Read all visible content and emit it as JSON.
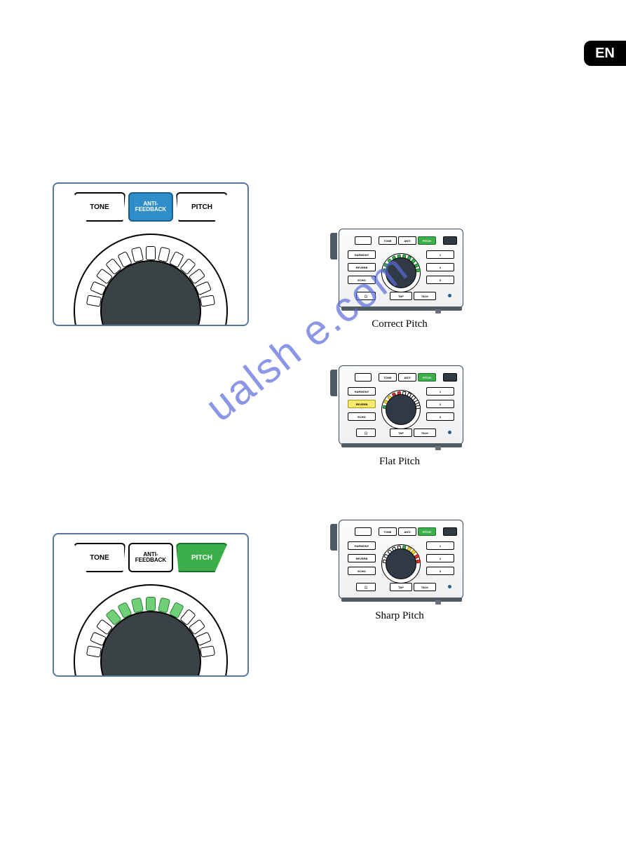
{
  "lang_badge": "EN",
  "panel1": {
    "btn_tone": "TONE",
    "btn_anti_line1": "ANTI-",
    "btn_anti_line2": "FEEDBACK",
    "btn_pitch": "PITCH",
    "anti_lit": true,
    "pitch_lit": false,
    "segs_lit": [],
    "colors": {
      "anti_bg": "#2f8dc9",
      "pitch_bg": "#ffffff",
      "knob": "#3b4246"
    }
  },
  "panel2": {
    "btn_tone": "TONE",
    "btn_anti_line1": "ANTI-",
    "btn_anti_line2": "FEEDBACK",
    "btn_pitch": "PITCH",
    "anti_lit": false,
    "pitch_lit": true,
    "segs_lit": [
      3,
      4,
      5,
      6,
      7,
      8
    ],
    "colors": {
      "anti_bg": "#ffffff",
      "pitch_bg": "#3caf4a",
      "knob": "#3b4246"
    }
  },
  "thumbs": {
    "t1_label": "Correct Pitch",
    "t2_label": "Flat Pitch",
    "t3_label": "Sharp Pitch",
    "top_row": [
      "TONE",
      "ANTI",
      "PITCH"
    ],
    "left_col": [
      "HARMONY",
      "REVERB",
      "ECHO"
    ],
    "right_col": [
      "1",
      "2",
      "3"
    ],
    "bottom_row": [
      "",
      "TAP",
      "TALK"
    ],
    "headphone_icon": "🎧",
    "t1_ring": {
      "left": [
        "g",
        "g",
        "g",
        "g",
        "g"
      ],
      "right": [
        "g",
        "g",
        "g",
        "g",
        "g"
      ]
    },
    "t2_ring": {
      "left": [
        "r",
        "r",
        "y",
        "y",
        "g"
      ],
      "right": [
        "",
        "",
        "",
        "",
        ""
      ]
    },
    "t3_ring": {
      "left": [
        "",
        "",
        "",
        "",
        ""
      ],
      "right": [
        "g",
        "y",
        "y",
        "r",
        "r"
      ]
    }
  },
  "watermark": "ualsh   e.com",
  "styling": {
    "page_bg": "#ffffff",
    "badge_bg": "#000000",
    "badge_fg": "#ffffff",
    "panel_border": "#5877a0",
    "seg_lit": "#6fd078",
    "green": "#3caf4a",
    "yellow": "#f4d93a",
    "red": "#d9352a",
    "blue": "#2f8dc9",
    "knob_dark": "#3b4246",
    "wm_color": "#5b6bdc"
  }
}
